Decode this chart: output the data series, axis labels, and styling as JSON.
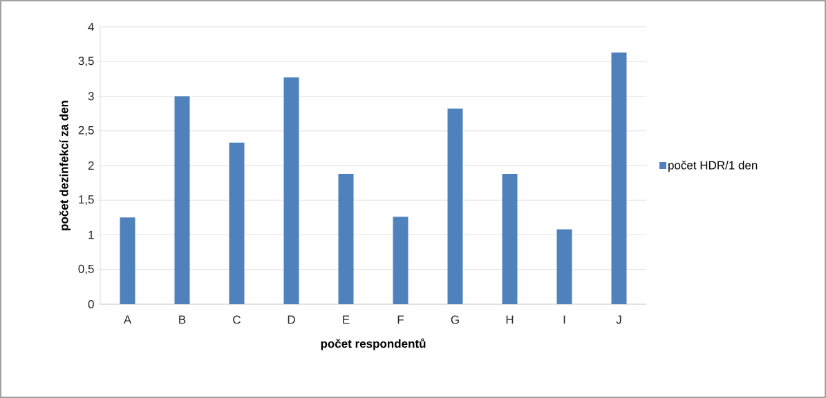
{
  "chart_data": {
    "type": "bar",
    "xlabel": "počet respondentů",
    "ylabel": "počet dezinfekcí za den",
    "categories": [
      "A",
      "B",
      "C",
      "D",
      "E",
      "F",
      "G",
      "H",
      "I",
      "J"
    ],
    "series": [
      {
        "name": "počet HDR/1 den",
        "color": "#4f81bd",
        "values": [
          1.25,
          3.0,
          2.33,
          3.27,
          1.88,
          1.26,
          2.82,
          1.88,
          1.08,
          3.63
        ]
      }
    ],
    "ylim": [
      0,
      4
    ],
    "yticks": [
      0,
      {
        "value": 0.5,
        "label": "0,5"
      },
      1,
      {
        "value": 1.5,
        "label": "1,5"
      },
      2,
      {
        "value": 2.5,
        "label": "2,5"
      },
      3,
      {
        "value": 3.5,
        "label": "3,5"
      },
      4
    ],
    "grid": "y",
    "legend": "right"
  }
}
